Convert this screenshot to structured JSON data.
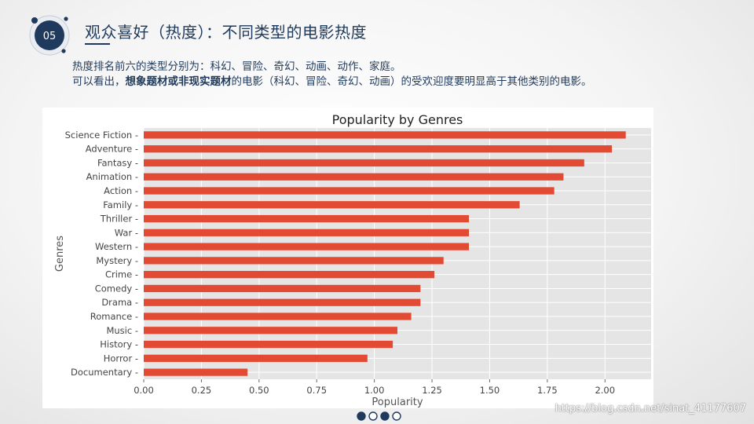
{
  "slide": {
    "number": "05",
    "title": "观众喜好（热度）：不同类型的电影热度"
  },
  "description": {
    "line1": "热度排名前六的类型分别为：科幻、冒险、奇幻、动画、动作、家庭。",
    "line2_prefix": "可以看出，",
    "line2_bold": "想象题材或非现实题材",
    "line2_suffix": "的电影（科幻、冒险、奇幻、动画）的受欢迎度要明显高于其他类别的电影。"
  },
  "watermark": "https://blog.csdn.net/sinat_41177607",
  "pagination": {
    "total": 4,
    "filled": [
      0,
      2
    ]
  },
  "chart_data": {
    "type": "bar",
    "orientation": "horizontal",
    "title": "Popularity by Genres",
    "xlabel": "Popularity",
    "ylabel": "Genres",
    "xlim": [
      0,
      2.2
    ],
    "xticks": [
      0.0,
      0.25,
      0.5,
      0.75,
      1.0,
      1.25,
      1.5,
      1.75,
      2.0
    ],
    "xtick_labels": [
      "0.00",
      "0.25",
      "0.50",
      "0.75",
      "1.00",
      "1.25",
      "1.50",
      "1.75",
      "2.00"
    ],
    "grid": true,
    "bar_color": "#e24a33",
    "background": "#e5e5e5",
    "categories": [
      "Science Fiction",
      "Adventure",
      "Fantasy",
      "Animation",
      "Action",
      "Family",
      "Thriller",
      "War",
      "Western",
      "Mystery",
      "Crime",
      "Comedy",
      "Drama",
      "Romance",
      "Music",
      "History",
      "Horror",
      "Documentary"
    ],
    "values": [
      2.09,
      2.03,
      1.91,
      1.82,
      1.78,
      1.63,
      1.41,
      1.41,
      1.41,
      1.3,
      1.26,
      1.2,
      1.2,
      1.16,
      1.1,
      1.08,
      0.97,
      0.45
    ]
  }
}
